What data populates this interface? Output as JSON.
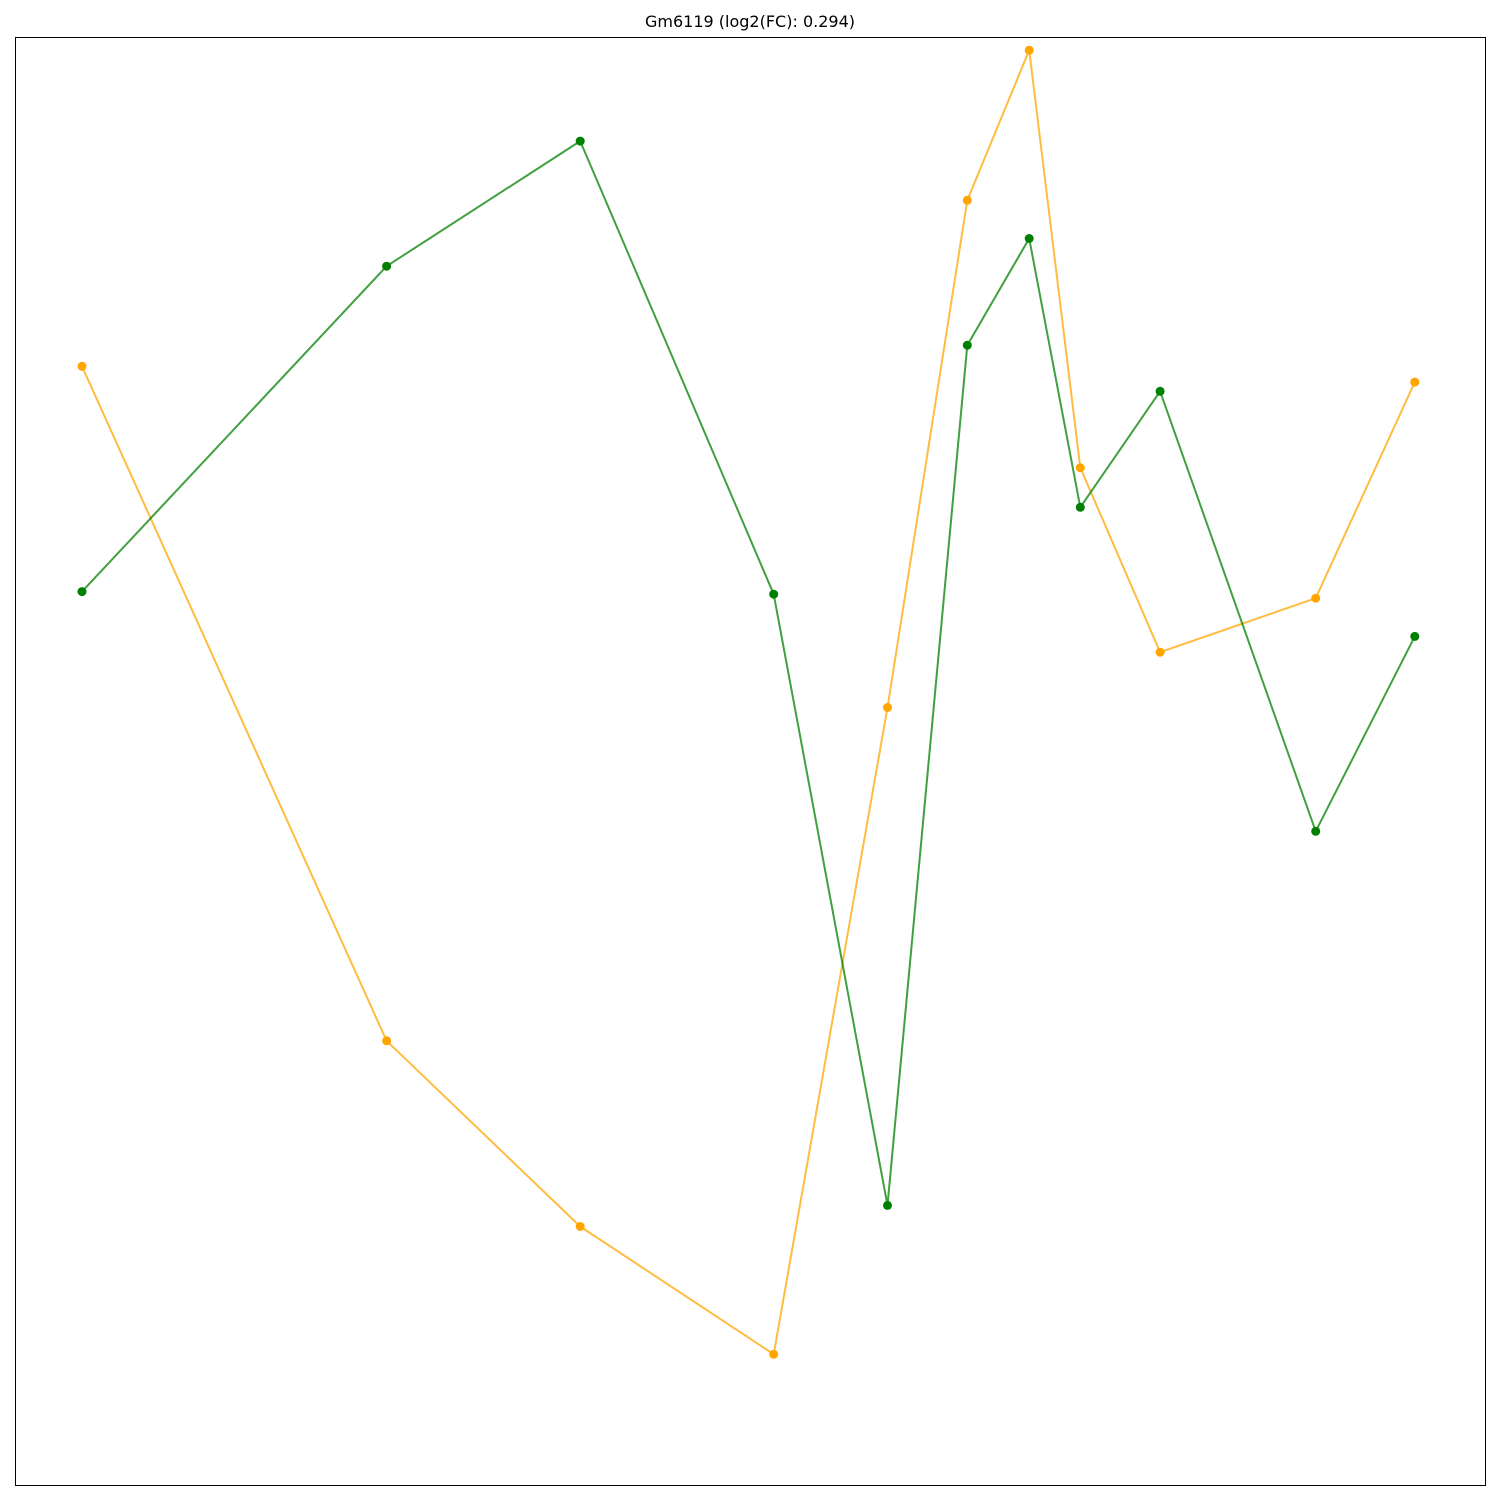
{
  "chart_data": {
    "type": "line",
    "title": "Gm6119 (log2(FC): 0.294)",
    "xlabel": "",
    "ylabel": "",
    "xlim": [
      -0.5,
      18.5
    ],
    "ylim": [
      -0.05,
      1.05
    ],
    "axes_visible": false,
    "grid": false,
    "legend": "none",
    "series": [
      {
        "color": "#ffa500",
        "points": [
          [
            0.365,
            0.8
          ],
          [
            4.3,
            0.288
          ],
          [
            6.8,
            0.147
          ],
          [
            9.3,
            0.05
          ],
          [
            10.77,
            0.541
          ],
          [
            11.8,
            0.926
          ],
          [
            12.6,
            1.04
          ],
          [
            13.26,
            0.723
          ],
          [
            14.29,
            0.583
          ],
          [
            16.3,
            0.624
          ],
          [
            17.58,
            0.788
          ]
        ]
      },
      {
        "color": "#008000",
        "points": [
          [
            0.365,
            0.629
          ],
          [
            4.3,
            0.876
          ],
          [
            6.8,
            0.971
          ],
          [
            9.3,
            0.627
          ],
          [
            10.77,
            0.163
          ],
          [
            11.8,
            0.816
          ],
          [
            12.6,
            0.897
          ],
          [
            13.26,
            0.693
          ],
          [
            14.29,
            0.781
          ],
          [
            16.3,
            0.447
          ],
          [
            17.58,
            0.595
          ]
        ]
      }
    ]
  }
}
